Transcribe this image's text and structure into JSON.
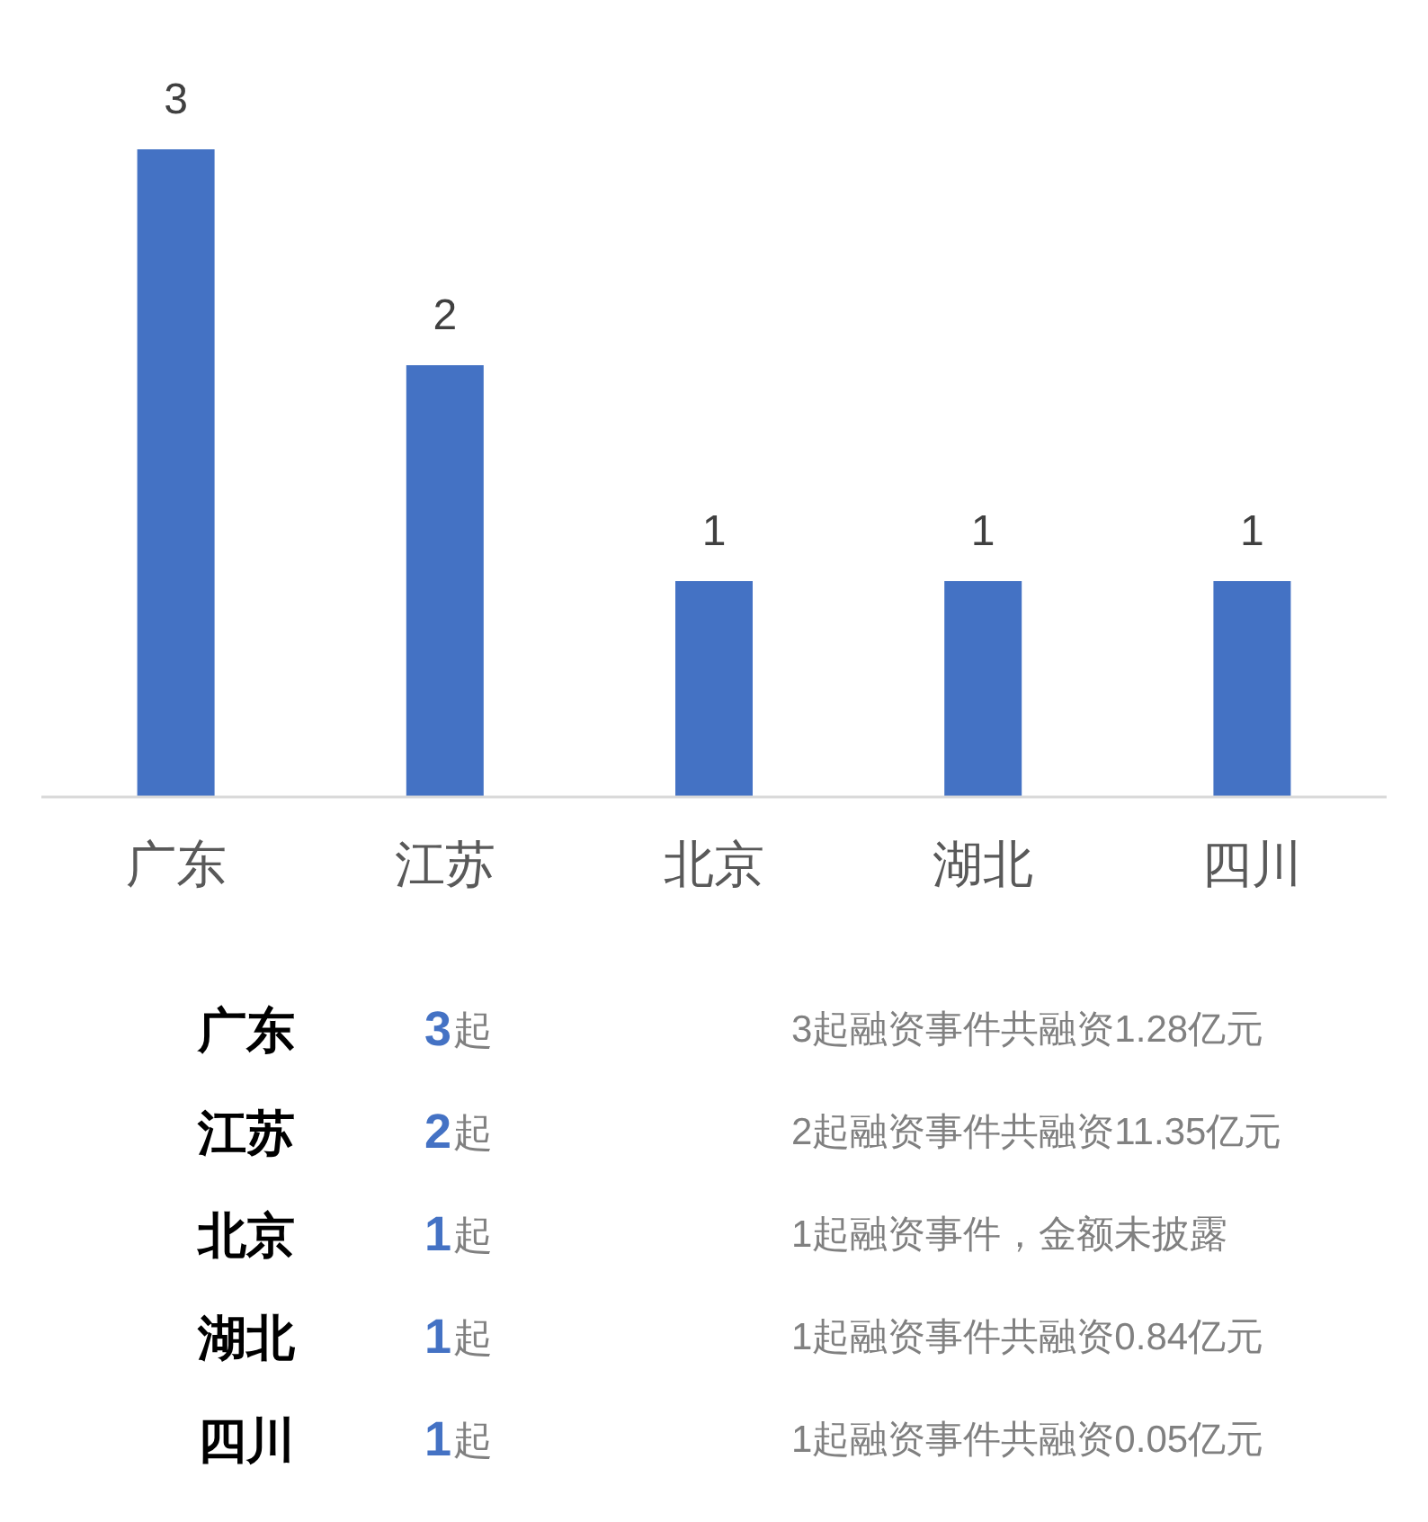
{
  "chart_data": [
    {
      "type": "bar",
      "categories": [
        "广东",
        "江苏",
        "北京",
        "湖北",
        "四川"
      ],
      "values": [
        3,
        2,
        1,
        1,
        1
      ],
      "color": "#4472c4",
      "data_labels": true
    },
    {
      "type": "other",
      "annotations": [
        "广东",
        "3",
        "起",
        "3起融资事件共融资1.28亿元",
        "江苏",
        "2",
        "起",
        "2起融资事件共融资11.35亿元",
        "北京",
        "1",
        "起",
        "1起融资事件，金额未披露",
        "湖北",
        "1",
        "起",
        "1起融资事件共融资0.84亿元",
        "四川",
        "1",
        "起",
        "1起融资事件共融资0.05亿元"
      ]
    }
  ]
}
